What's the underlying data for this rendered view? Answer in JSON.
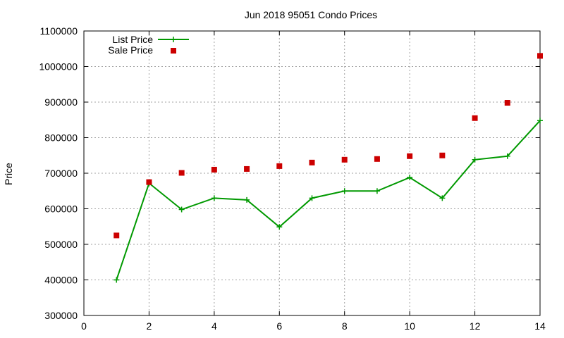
{
  "chart_data": {
    "type": "line",
    "title": "Jun 2018 95051 Condo Prices",
    "xlabel": "",
    "ylabel": "Price",
    "xlim": [
      0,
      14
    ],
    "ylim": [
      300000,
      1100000
    ],
    "xticks": [
      0,
      2,
      4,
      6,
      8,
      10,
      12,
      14
    ],
    "yticks": [
      300000,
      400000,
      500000,
      600000,
      700000,
      800000,
      900000,
      1000000,
      1100000
    ],
    "grid": true,
    "legend_position": "top-left",
    "series": [
      {
        "name": "List Price",
        "kind": "line-with-plus-markers",
        "color": "#009900",
        "x": [
          1,
          2,
          3,
          4,
          5,
          6,
          7,
          8,
          9,
          10,
          11,
          12,
          13,
          14
        ],
        "y": [
          400000,
          672000,
          598000,
          630000,
          625000,
          549000,
          630000,
          650000,
          650000,
          688000,
          630000,
          738000,
          748000,
          848000
        ]
      },
      {
        "name": "Sale Price",
        "kind": "points",
        "color": "#cc0000",
        "x": [
          1,
          2,
          3,
          4,
          5,
          6,
          7,
          8,
          9,
          10,
          11,
          12,
          13,
          14
        ],
        "y": [
          525000,
          675000,
          701000,
          710000,
          712000,
          720000,
          730000,
          738000,
          740000,
          748000,
          750000,
          855000,
          898000,
          1030000
        ]
      }
    ]
  }
}
